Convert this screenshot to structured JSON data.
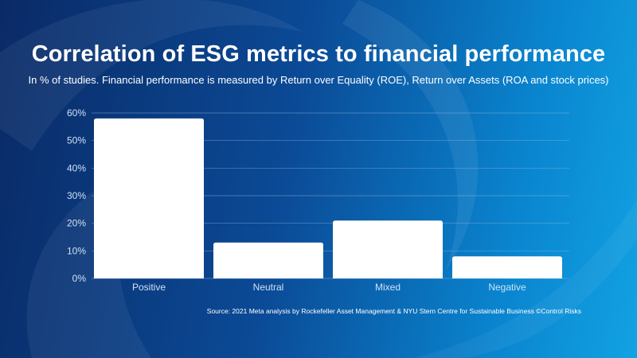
{
  "colors": {
    "bar": "#ffffff",
    "text": "#ffffff",
    "axis_text": "#cfe1f5",
    "grid": "#8ab6e3"
  },
  "chart_data": {
    "type": "bar",
    "title": "Correlation of ESG metrics to financial performance",
    "subtitle": "In % of studies. Financial performance is measured by Return over Equality (ROE), Return over Assets (ROA and stock prices)",
    "categories": [
      "Positive",
      "Neutral",
      "Mixed",
      "Negative"
    ],
    "values": [
      58,
      13,
      21,
      8
    ],
    "yticks": [
      "0%",
      "10%",
      "20%",
      "30%",
      "40%",
      "50%",
      "60%"
    ],
    "ylim": [
      0,
      60
    ],
    "grid": true,
    "legend": "none"
  },
  "source": "Source: 2021 Meta analysis by Rockefeller Asset Management & NYU Stern Centre for Sustainable Business ©Control Risks"
}
